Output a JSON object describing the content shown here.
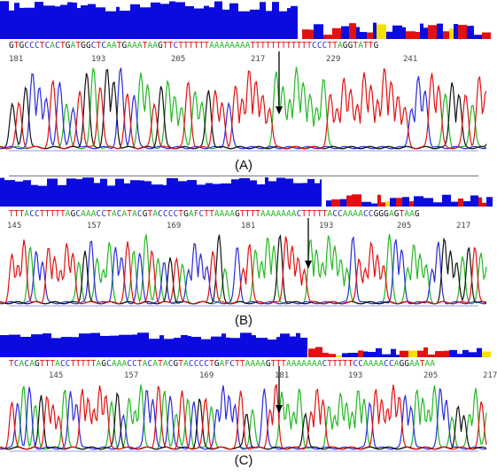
{
  "panels": [
    {
      "id": "A",
      "caption": "(A)",
      "sequence": "GTGCCCTCACTGATGGCTCAATGAAATAAGTTCTTTTTTAAAAAAAATTTTTTTTTTTTCCCTTAGGTATTG",
      "positions": [
        "181",
        "193",
        "205",
        "217",
        "229",
        "241"
      ],
      "quality_high_fraction": 0.61
    },
    {
      "id": "B",
      "caption": "(B)",
      "sequence": "TTTACCTTTTTAGCAAACCTACATACGTACCCCTGAFCTTAAAAGTTTTAAAAAAACTTTTTACCAAAACCGGGAGTAAG",
      "positions": [
        "145",
        "157",
        "169",
        "181",
        "193",
        "205",
        "217"
      ],
      "quality_high_fraction": 0.66
    },
    {
      "id": "C",
      "caption": "(C)",
      "sequence": "TCACAGTTTACCTTTTTAGCAAACCTACATACGTACCCCTGAFCTTAAAAGTTTAAAAAAACTTTTTCCAAAACCAGGAATAA",
      "positions": [
        "145",
        "157",
        "169",
        "181",
        "193",
        "205",
        "217"
      ],
      "quality_high_fraction": 0.63
    }
  ],
  "colors": {
    "quality_bar": "#0b0be0",
    "trace_A": "#22b822",
    "trace_C": "#2a2ae0",
    "trace_G": "#111111",
    "trace_T": "#e21010",
    "low_quality_red": "#e21010",
    "low_quality_yellow": "#f5e000"
  }
}
